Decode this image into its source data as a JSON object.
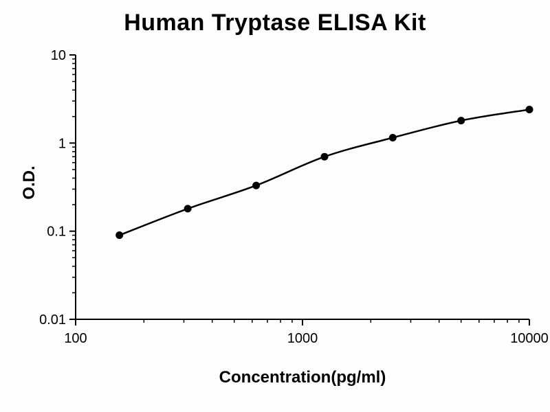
{
  "chart": {
    "title": "Human Tryptase ELISA Kit",
    "xlabel": "Concentration(pg/ml)",
    "ylabel": "O.D."
  },
  "chart_data": {
    "type": "line",
    "title": "Human Tryptase ELISA Kit",
    "xlabel": "Concentration(pg/ml)",
    "ylabel": "O.D.",
    "xscale": "log",
    "yscale": "log",
    "xlim": [
      100,
      10000
    ],
    "ylim": [
      0.01,
      10
    ],
    "x_ticks": [
      100,
      1000,
      10000
    ],
    "y_ticks": [
      0.01,
      0.1,
      1,
      10
    ],
    "x": [
      156,
      312,
      625,
      1250,
      2500,
      5000,
      10000
    ],
    "values": [
      0.09,
      0.18,
      0.33,
      0.7,
      1.15,
      1.8,
      2.4
    ],
    "line_color": "#000000",
    "marker_color": "#000000",
    "grid": false,
    "legend": false
  }
}
